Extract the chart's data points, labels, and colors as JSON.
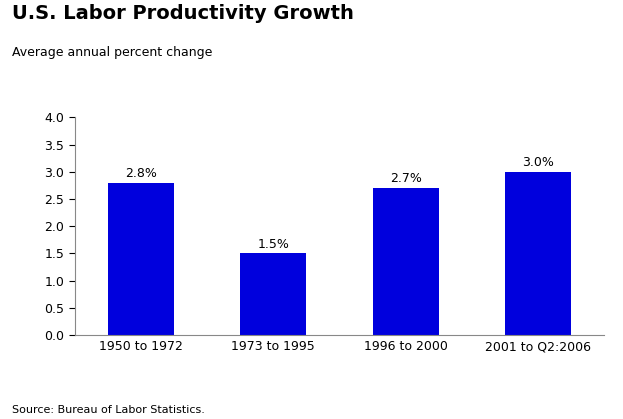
{
  "title": "U.S. Labor Productivity Growth",
  "subtitle": "Average annual percent change",
  "source": "Source: Bureau of Labor Statistics.",
  "categories": [
    "1950 to 1972",
    "1973 to 1995",
    "1996 to 2000",
    "2001 to Q2:2006"
  ],
  "values": [
    2.8,
    1.5,
    2.7,
    3.0
  ],
  "labels": [
    "2.8%",
    "1.5%",
    "2.7%",
    "3.0%"
  ],
  "bar_color": "#0000dd",
  "ylim": [
    0.0,
    4.0
  ],
  "yticks": [
    0.0,
    0.5,
    1.0,
    1.5,
    2.0,
    2.5,
    3.0,
    3.5,
    4.0
  ],
  "background_color": "#ffffff",
  "title_fontsize": 14,
  "subtitle_fontsize": 9,
  "label_fontsize": 9,
  "tick_fontsize": 9,
  "source_fontsize": 8,
  "bar_width": 0.5
}
